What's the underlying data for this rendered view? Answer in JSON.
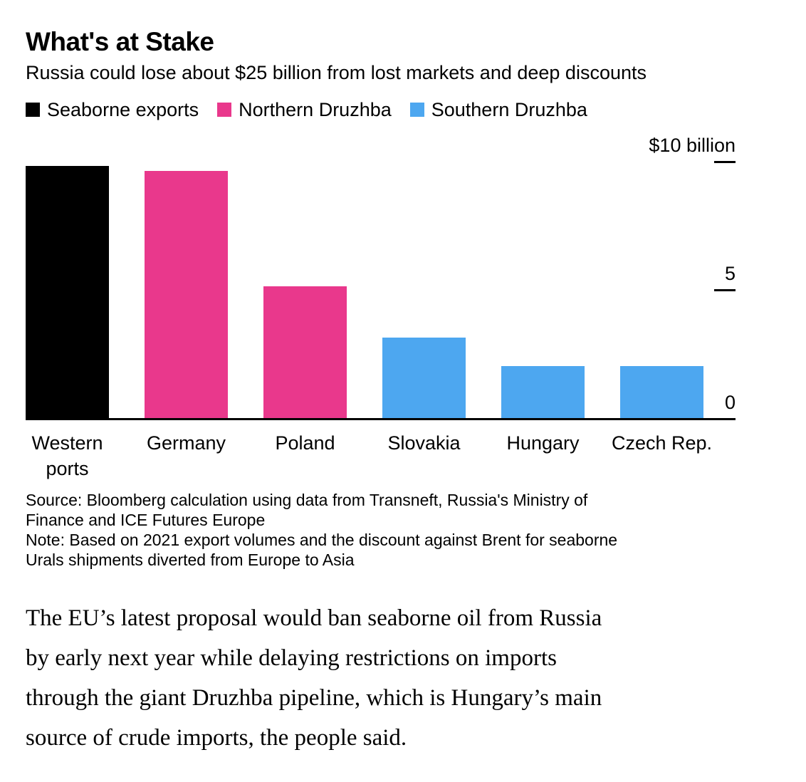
{
  "header": {
    "title": "What's at Stake",
    "subtitle": "Russia could lose about $25 billion from lost markets and deep discounts"
  },
  "legend": [
    {
      "name": "Seaborne exports",
      "color": "#000000"
    },
    {
      "name": "Northern Druzhba",
      "color": "#e9388c"
    },
    {
      "name": "Southern Druzhba",
      "color": "#4da7f0"
    }
  ],
  "chart_data": {
    "type": "bar",
    "title": "What's at Stake",
    "subtitle": "Russia could lose about $25 billion from lost markets and deep discounts",
    "unit": "$ billion",
    "categories": [
      "Western ports",
      "Germany",
      "Poland",
      "Slovakia",
      "Hungary",
      "Czech Rep."
    ],
    "values": [
      9.9,
      9.7,
      5.2,
      3.2,
      2.1,
      2.1
    ],
    "bar_series": [
      "Seaborne exports",
      "Northern Druzhba",
      "Northern Druzhba",
      "Southern Druzhba",
      "Southern Druzhba",
      "Southern Druzhba"
    ],
    "bar_colors": [
      "#000000",
      "#e9388c",
      "#e9388c",
      "#4da7f0",
      "#4da7f0",
      "#4da7f0"
    ],
    "series": [
      {
        "name": "Seaborne exports",
        "color": "#000000",
        "categories": [
          "Western ports"
        ],
        "values": [
          9.9
        ]
      },
      {
        "name": "Northern Druzhba",
        "color": "#e9388c",
        "categories": [
          "Germany",
          "Poland"
        ],
        "values": [
          9.7,
          5.2
        ]
      },
      {
        "name": "Southern Druzhba",
        "color": "#4da7f0",
        "categories": [
          "Slovakia",
          "Hungary",
          "Czech Rep."
        ],
        "values": [
          3.2,
          2.1,
          2.1
        ]
      }
    ],
    "y_axis": {
      "range": [
        0,
        10
      ],
      "ticks": [
        0,
        5,
        10
      ],
      "tick_labels": [
        "0",
        "5",
        "$10 billion"
      ],
      "side": "right"
    },
    "grid": false,
    "legend_position": "top"
  },
  "footnotes": {
    "source": "Source: Bloomberg calculation using data from Transneft, Russia's Ministry of\nFinance and ICE Futures Europe",
    "note": "Note: Based on 2021 export volumes and the discount against Brent for seaborne\nUrals shipments diverted from Europe to Asia"
  },
  "article": {
    "paragraph": "The EU’s latest proposal would ban seaborne oil from Russia\nby early next year while delaying restrictions on imports\nthrough the giant Druzhba pipeline, which is Hungary’s main\nsource of crude imports, the people said."
  }
}
